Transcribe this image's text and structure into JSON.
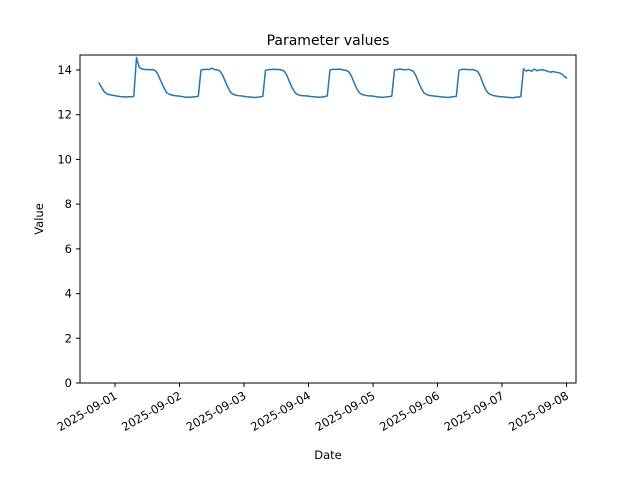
{
  "chart_data": {
    "type": "line",
    "title": "Parameter values",
    "xlabel": "Date",
    "ylabel": "Value",
    "grid": false,
    "legend": "none",
    "line_color": "#1f77b4",
    "axes_color": "#000000",
    "background_color": "#ffffff",
    "line_width": 1.5,
    "ylim": [
      0,
      14.67
    ],
    "xlim_day_offsets": [
      -0.543,
      7.147
    ],
    "y_ticks": [
      0,
      2,
      4,
      6,
      8,
      10,
      12,
      14
    ],
    "x_tick_rotation_deg": 30,
    "x_ticks": [
      {
        "day_offset": 0,
        "label": "2025-09-01"
      },
      {
        "day_offset": 1,
        "label": "2025-09-02"
      },
      {
        "day_offset": 2,
        "label": "2025-09-03"
      },
      {
        "day_offset": 3,
        "label": "2025-09-04"
      },
      {
        "day_offset": 4,
        "label": "2025-09-05"
      },
      {
        "day_offset": 5,
        "label": "2025-09-06"
      },
      {
        "day_offset": 6,
        "label": "2025-09-07"
      },
      {
        "day_offset": 7,
        "label": "2025-09-08"
      }
    ],
    "series": [
      {
        "name": "Parameter values",
        "start_time": "2025-08-31 18:00",
        "start_day_offset": -0.25,
        "step_hours": 1,
        "values": [
          13.42,
          13.22,
          13.02,
          12.93,
          12.89,
          12.87,
          12.85,
          12.83,
          12.81,
          12.8,
          12.79,
          12.8,
          12.8,
          12.82,
          14.56,
          14.12,
          14.04,
          14.02,
          14.02,
          14.01,
          14.02,
          13.98,
          13.8,
          13.52,
          13.25,
          13.02,
          12.92,
          12.88,
          12.86,
          12.84,
          12.83,
          12.81,
          12.79,
          12.78,
          12.78,
          12.79,
          12.8,
          12.83,
          14.0,
          14.02,
          14.03,
          14.02,
          14.08,
          14.02,
          14.01,
          13.96,
          13.78,
          13.5,
          13.22,
          13.0,
          12.91,
          12.87,
          12.85,
          12.84,
          12.82,
          12.8,
          12.79,
          12.78,
          12.77,
          12.78,
          12.8,
          12.82,
          13.98,
          14.01,
          14.02,
          14.03,
          14.02,
          14.02,
          14.0,
          13.95,
          13.75,
          13.45,
          13.18,
          12.98,
          12.9,
          12.86,
          12.85,
          12.84,
          12.83,
          12.81,
          12.8,
          12.79,
          12.78,
          12.79,
          12.81,
          12.84,
          14.01,
          14.03,
          14.02,
          14.04,
          14.03,
          14.0,
          13.98,
          13.92,
          13.72,
          13.42,
          13.15,
          12.97,
          12.9,
          12.87,
          12.85,
          12.84,
          12.83,
          12.81,
          12.79,
          12.78,
          12.78,
          12.8,
          12.81,
          12.83,
          14.0,
          14.02,
          14.04,
          14.02,
          14.01,
          14.03,
          14.0,
          13.94,
          13.74,
          13.44,
          13.16,
          12.97,
          12.9,
          12.86,
          12.85,
          12.83,
          12.82,
          12.8,
          12.79,
          12.78,
          12.77,
          12.79,
          12.8,
          12.82,
          13.99,
          14.02,
          14.03,
          14.02,
          14.01,
          14.02,
          13.99,
          13.93,
          13.7,
          13.38,
          13.1,
          12.95,
          12.89,
          12.85,
          12.83,
          12.81,
          12.8,
          12.79,
          12.78,
          12.77,
          12.76,
          12.78,
          12.79,
          12.81,
          14.05,
          13.95,
          14.0,
          13.94,
          14.04,
          13.97,
          14.0,
          14.01,
          13.98,
          13.94,
          13.9,
          13.93,
          13.9,
          13.88,
          13.84,
          13.74,
          13.64
        ]
      }
    ]
  }
}
